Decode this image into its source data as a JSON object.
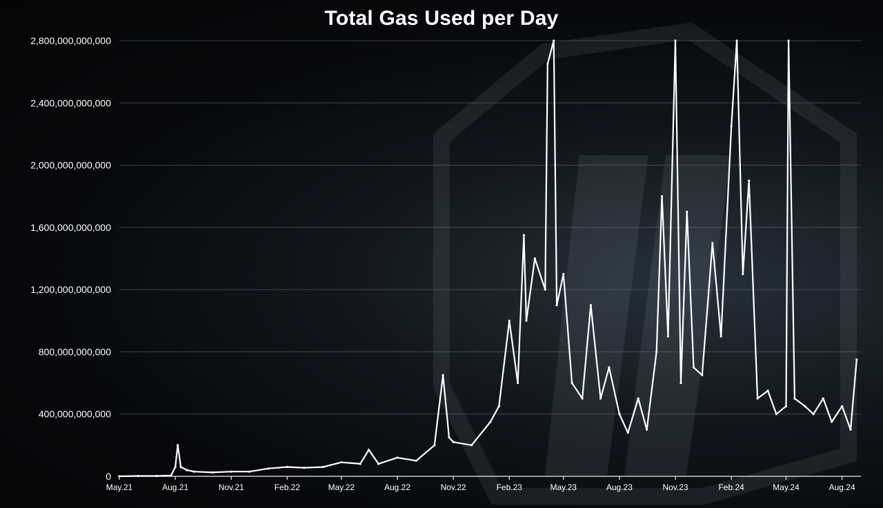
{
  "chart_data": {
    "type": "line",
    "title": "Total Gas Used per Day",
    "xlabel": "",
    "ylabel": "",
    "ylim": [
      0,
      2800000000000
    ],
    "xlim": [
      "2021-05-01",
      "2024-09-01"
    ],
    "grid": true,
    "line_color": "#ffffff",
    "y_ticks": [
      {
        "value": 0,
        "label": "0"
      },
      {
        "value": 400000000000,
        "label": "400,000,000,000"
      },
      {
        "value": 800000000000,
        "label": "800,000,000,000"
      },
      {
        "value": 1200000000000,
        "label": "1,200,000,000,000"
      },
      {
        "value": 1600000000000,
        "label": "1,600,000,000,000"
      },
      {
        "value": 2000000000000,
        "label": "2,000,000,000,000"
      },
      {
        "value": 2400000000000,
        "label": "2,400,000,000,000"
      },
      {
        "value": 2800000000000,
        "label": "2,800,000,000,000"
      }
    ],
    "x_ticks": [
      {
        "value": "2021-05-01",
        "label": "May.21"
      },
      {
        "value": "2021-08-01",
        "label": "Aug.21"
      },
      {
        "value": "2021-11-01",
        "label": "Nov.21"
      },
      {
        "value": "2022-02-01",
        "label": "Feb.22"
      },
      {
        "value": "2022-05-01",
        "label": "May.22"
      },
      {
        "value": "2022-08-01",
        "label": "Aug.22"
      },
      {
        "value": "2022-11-01",
        "label": "Nov.22"
      },
      {
        "value": "2023-02-01",
        "label": "Feb.23"
      },
      {
        "value": "2023-05-01",
        "label": "May.23"
      },
      {
        "value": "2023-08-01",
        "label": "Aug.23"
      },
      {
        "value": "2023-11-01",
        "label": "Nov.23"
      },
      {
        "value": "2024-02-01",
        "label": "Feb.24"
      },
      {
        "value": "2024-05-01",
        "label": "May.24"
      },
      {
        "value": "2024-08-01",
        "label": "Aug.24"
      }
    ],
    "series": [
      {
        "name": "",
        "x": [
          "2021-05-01",
          "2021-06-01",
          "2021-07-01",
          "2021-07-25",
          "2021-08-01",
          "2021-08-05",
          "2021-08-10",
          "2021-08-20",
          "2021-09-01",
          "2021-10-01",
          "2021-11-01",
          "2021-12-01",
          "2022-01-01",
          "2022-02-01",
          "2022-03-01",
          "2022-04-01",
          "2022-05-01",
          "2022-06-01",
          "2022-06-15",
          "2022-07-01",
          "2022-08-01",
          "2022-09-01",
          "2022-10-01",
          "2022-10-15",
          "2022-10-25",
          "2022-11-01",
          "2022-12-01",
          "2023-01-01",
          "2023-01-15",
          "2023-02-01",
          "2023-02-15",
          "2023-02-25",
          "2023-03-01",
          "2023-03-15",
          "2023-04-01",
          "2023-04-05",
          "2023-04-15",
          "2023-04-20",
          "2023-05-01",
          "2023-05-15",
          "2023-06-01",
          "2023-06-15",
          "2023-07-01",
          "2023-07-15",
          "2023-08-01",
          "2023-08-15",
          "2023-09-01",
          "2023-09-15",
          "2023-10-01",
          "2023-10-10",
          "2023-10-20",
          "2023-11-01",
          "2023-11-10",
          "2023-11-20",
          "2023-12-01",
          "2023-12-15",
          "2024-01-01",
          "2024-01-15",
          "2024-02-01",
          "2024-02-10",
          "2024-02-20",
          "2024-03-01",
          "2024-03-15",
          "2024-04-01",
          "2024-04-15",
          "2024-05-01",
          "2024-05-05",
          "2024-05-15",
          "2024-06-01",
          "2024-06-15",
          "2024-07-01",
          "2024-07-15",
          "2024-08-01",
          "2024-08-15",
          "2024-08-25"
        ],
        "y": [
          0,
          2000000000,
          2000000000,
          5000000000,
          60000000000,
          200000000000,
          60000000000,
          40000000000,
          30000000000,
          25000000000,
          30000000000,
          30000000000,
          50000000000,
          60000000000,
          55000000000,
          60000000000,
          90000000000,
          80000000000,
          170000000000,
          80000000000,
          120000000000,
          100000000000,
          200000000000,
          650000000000,
          250000000000,
          220000000000,
          200000000000,
          350000000000,
          450000000000,
          1000000000000,
          600000000000,
          1550000000000,
          1000000000000,
          1400000000000,
          1200000000000,
          2650000000000,
          2800000000000,
          1100000000000,
          1300000000000,
          600000000000,
          500000000000,
          1100000000000,
          500000000000,
          700000000000,
          400000000000,
          280000000000,
          500000000000,
          300000000000,
          800000000000,
          1800000000000,
          900000000000,
          2800000000000,
          600000000000,
          1700000000000,
          700000000000,
          650000000000,
          1500000000000,
          900000000000,
          2250000000000,
          2800000000000,
          1300000000000,
          1900000000000,
          500000000000,
          550000000000,
          400000000000,
          450000000000,
          2800000000000,
          500000000000,
          450000000000,
          400000000000,
          500000000000,
          350000000000,
          450000000000,
          300000000000,
          750000000000
        ]
      }
    ]
  }
}
